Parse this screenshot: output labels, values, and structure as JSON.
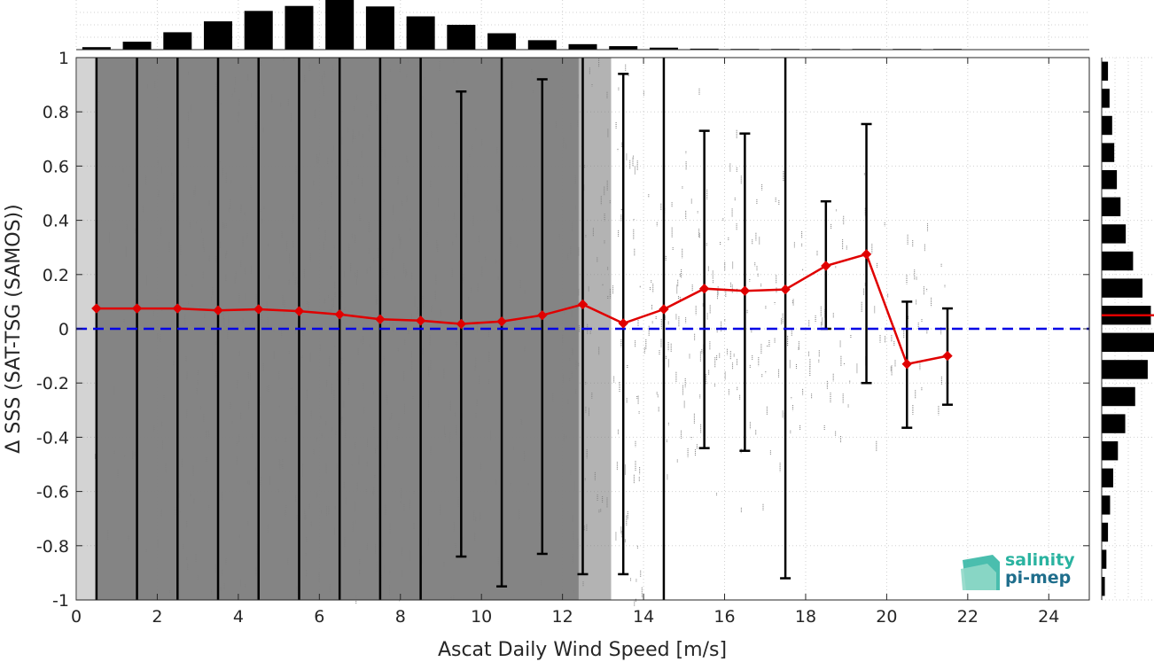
{
  "chart_data": {
    "type": "scatter",
    "xlabel": "Ascat Daily Wind Speed [m/s]",
    "ylabel": "Δ SSS (SAT-TSG (SAMOS))",
    "xlim": [
      0,
      25
    ],
    "ylim": [
      -1,
      1
    ],
    "x_ticks": [
      0,
      2,
      4,
      6,
      8,
      10,
      12,
      14,
      16,
      18,
      20,
      22,
      24
    ],
    "y_ticks": [
      -1,
      -0.8,
      -0.6,
      -0.4,
      -0.2,
      0,
      0.2,
      0.4,
      0.6,
      0.8,
      1
    ],
    "x_tick_labels": [
      "0",
      "2",
      "4",
      "6",
      "8",
      "10",
      "12",
      "14",
      "16",
      "18",
      "20",
      "22",
      "24"
    ],
    "y_tick_labels": [
      "-1",
      "-0.8",
      "-0.6",
      "-0.4",
      "-0.2",
      "0",
      "0.2",
      "0.4",
      "0.6",
      "0.8",
      "1"
    ],
    "grid": true,
    "reference_line": {
      "y": 0,
      "color": "#0000e6",
      "style": "dashed"
    },
    "binned_mean": {
      "color": "#e00000",
      "x": [
        0.5,
        1.5,
        2.5,
        3.5,
        4.5,
        5.5,
        6.5,
        7.5,
        8.5,
        9.5,
        10.5,
        11.5,
        12.5,
        13.5,
        14.5,
        15.5,
        16.5,
        17.5,
        18.5,
        19.5,
        20.5,
        21.5
      ],
      "y": [
        0.075,
        0.075,
        0.075,
        0.068,
        0.072,
        0.065,
        0.053,
        0.035,
        0.03,
        0.018,
        0.027,
        0.05,
        0.09,
        0.02,
        0.072,
        0.148,
        0.14,
        0.145,
        0.232,
        0.275,
        -0.13,
        -0.1
      ],
      "err_low": [
        -1,
        -1,
        -1,
        -1,
        -1,
        -1,
        -1,
        -1,
        -1,
        -0.84,
        -0.95,
        -0.83,
        -0.905,
        -0.905,
        -1,
        -0.44,
        -0.45,
        -0.92,
        0,
        -0.2,
        -0.365,
        -0.28
      ],
      "err_high": [
        1,
        1,
        1,
        1,
        1,
        1,
        1,
        1,
        1,
        0.875,
        1,
        0.92,
        1,
        0.94,
        1,
        0.73,
        0.72,
        1,
        0.47,
        0.755,
        0.1,
        0.075
      ]
    },
    "scatter_color": "#808080",
    "x_histogram": {
      "bin_centers": [
        0.5,
        1.5,
        2.5,
        3.5,
        4.5,
        5.5,
        6.5,
        7.5,
        8.5,
        9.5,
        10.5,
        11.5,
        12.5,
        13.5,
        14.5,
        15.5,
        16.5,
        17.5,
        18.5,
        19.5,
        20.5,
        21.5
      ],
      "relative_counts": [
        0.05,
        0.16,
        0.35,
        0.57,
        0.78,
        0.88,
        1.0,
        0.87,
        0.67,
        0.5,
        0.33,
        0.19,
        0.11,
        0.07,
        0.04,
        0.02,
        0.01,
        0.005,
        0.003,
        0.002,
        0.001,
        0.001
      ]
    },
    "y_histogram": {
      "bin_centers": [
        0.95,
        0.85,
        0.75,
        0.65,
        0.55,
        0.45,
        0.35,
        0.25,
        0.15,
        0.05,
        -0.05,
        -0.15,
        -0.25,
        -0.35,
        -0.45,
        -0.55,
        -0.65,
        -0.75,
        -0.85,
        -0.95
      ],
      "relative_counts": [
        0.12,
        0.15,
        0.2,
        0.24,
        0.29,
        0.36,
        0.46,
        0.6,
        0.78,
        0.94,
        1.0,
        0.88,
        0.64,
        0.45,
        0.31,
        0.22,
        0.16,
        0.12,
        0.09,
        0.06
      ],
      "median_line": {
        "y": 0.05,
        "color": "#e00000"
      }
    }
  },
  "logo": {
    "line1": "salinity",
    "line2": "pi-mep",
    "colors": {
      "line1": "#2ab3a0",
      "line2": "#1f6e8c"
    }
  }
}
